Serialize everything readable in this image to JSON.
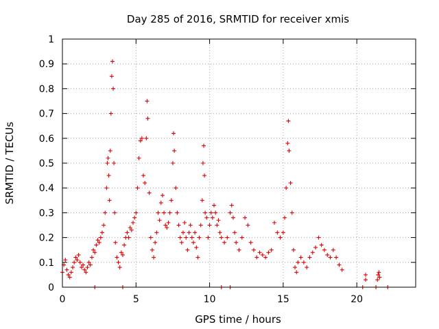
{
  "chart_data": {
    "type": "scatter",
    "title": "Day 285 of 2016, SRMTID for receiver xmis",
    "xlabel": "GPS time / hours",
    "ylabel": "SRMTID / TECUs",
    "xlim": [
      0,
      24
    ],
    "ylim": [
      0,
      1
    ],
    "x_ticks": [
      0,
      5,
      10,
      15,
      20
    ],
    "x_tick_labels": [
      "0",
      "5",
      "10",
      "15",
      "20"
    ],
    "y_ticks": [
      0,
      0.1,
      0.2,
      0.3,
      0.4,
      0.5,
      0.6,
      0.7,
      0.8,
      0.9,
      1
    ],
    "y_tick_labels": [
      "0",
      "0.1",
      "0.2",
      "0.3",
      "0.4",
      "0.5",
      "0.6",
      "0.7",
      "0.8",
      "0.9",
      "1"
    ],
    "grid": true,
    "marker": "plus",
    "series": [
      {
        "name": "SRMTID",
        "color": "#e00000",
        "points": [
          [
            0.0,
            0.06
          ],
          [
            0.1,
            0.09
          ],
          [
            0.2,
            0.11
          ],
          [
            0.3,
            0.07
          ],
          [
            0.4,
            0.05
          ],
          [
            0.5,
            0.04
          ],
          [
            0.6,
            0.06
          ],
          [
            0.7,
            0.08
          ],
          [
            0.8,
            0.1
          ],
          [
            0.9,
            0.12
          ],
          [
            1.0,
            0.11
          ],
          [
            1.1,
            0.13
          ],
          [
            1.2,
            0.1
          ],
          [
            1.3,
            0.08
          ],
          [
            1.4,
            0.09
          ],
          [
            1.5,
            0.07
          ],
          [
            1.6,
            0.06
          ],
          [
            1.7,
            0.08
          ],
          [
            1.8,
            0.1
          ],
          [
            1.9,
            0.09
          ],
          [
            2.0,
            0.12
          ],
          [
            2.1,
            0.15
          ],
          [
            2.2,
            0.14
          ],
          [
            2.3,
            0.17
          ],
          [
            2.4,
            0.19
          ],
          [
            2.5,
            0.18
          ],
          [
            2.6,
            0.2
          ],
          [
            2.7,
            0.22
          ],
          [
            2.8,
            0.25
          ],
          [
            2.9,
            0.3
          ],
          [
            3.0,
            0.4
          ],
          [
            3.05,
            0.5
          ],
          [
            3.1,
            0.52
          ],
          [
            3.15,
            0.45
          ],
          [
            3.2,
            0.35
          ],
          [
            3.25,
            0.55
          ],
          [
            3.3,
            0.7
          ],
          [
            3.35,
            0.85
          ],
          [
            3.4,
            0.91
          ],
          [
            3.45,
            0.8
          ],
          [
            3.5,
            0.5
          ],
          [
            3.55,
            0.3
          ],
          [
            3.6,
            0.18
          ],
          [
            3.7,
            0.12
          ],
          [
            3.8,
            0.1
          ],
          [
            3.9,
            0.08
          ],
          [
            4.0,
            0.14
          ],
          [
            4.1,
            0.13
          ],
          [
            4.2,
            0.17
          ],
          [
            4.3,
            0.2
          ],
          [
            4.4,
            0.22
          ],
          [
            4.5,
            0.2
          ],
          [
            4.6,
            0.24
          ],
          [
            4.7,
            0.23
          ],
          [
            4.8,
            0.26
          ],
          [
            4.9,
            0.28
          ],
          [
            5.0,
            0.3
          ],
          [
            5.1,
            0.4
          ],
          [
            5.2,
            0.52
          ],
          [
            5.3,
            0.59
          ],
          [
            5.4,
            0.6
          ],
          [
            5.5,
            0.45
          ],
          [
            5.6,
            0.42
          ],
          [
            5.7,
            0.6
          ],
          [
            5.75,
            0.75
          ],
          [
            5.8,
            0.68
          ],
          [
            5.9,
            0.38
          ],
          [
            6.0,
            0.2
          ],
          [
            6.1,
            0.15
          ],
          [
            6.2,
            0.12
          ],
          [
            6.3,
            0.18
          ],
          [
            6.4,
            0.22
          ],
          [
            6.5,
            0.3
          ],
          [
            6.6,
            0.27
          ],
          [
            6.7,
            0.34
          ],
          [
            6.8,
            0.37
          ],
          [
            6.9,
            0.3
          ],
          [
            7.0,
            0.25
          ],
          [
            7.1,
            0.24
          ],
          [
            7.2,
            0.26
          ],
          [
            7.3,
            0.3
          ],
          [
            7.4,
            0.35
          ],
          [
            7.5,
            0.5
          ],
          [
            7.55,
            0.62
          ],
          [
            7.6,
            0.55
          ],
          [
            7.7,
            0.4
          ],
          [
            7.8,
            0.3
          ],
          [
            7.9,
            0.25
          ],
          [
            8.0,
            0.2
          ],
          [
            8.1,
            0.18
          ],
          [
            8.2,
            0.22
          ],
          [
            8.3,
            0.26
          ],
          [
            8.4,
            0.2
          ],
          [
            8.5,
            0.15
          ],
          [
            8.6,
            0.22
          ],
          [
            8.7,
            0.25
          ],
          [
            8.8,
            0.2
          ],
          [
            8.9,
            0.18
          ],
          [
            9.0,
            0.22
          ],
          [
            9.1,
            0.16
          ],
          [
            9.2,
            0.12
          ],
          [
            9.3,
            0.2
          ],
          [
            9.4,
            0.25
          ],
          [
            9.5,
            0.35
          ],
          [
            9.55,
            0.5
          ],
          [
            9.6,
            0.57
          ],
          [
            9.65,
            0.45
          ],
          [
            9.7,
            0.3
          ],
          [
            9.8,
            0.28
          ],
          [
            9.9,
            0.2
          ],
          [
            10.0,
            0.25
          ],
          [
            10.1,
            0.3
          ],
          [
            10.2,
            0.28
          ],
          [
            10.3,
            0.33
          ],
          [
            10.4,
            0.3
          ],
          [
            10.5,
            0.25
          ],
          [
            10.6,
            0.27
          ],
          [
            10.7,
            0.22
          ],
          [
            10.8,
            0.2
          ],
          [
            11.0,
            0.18
          ],
          [
            11.2,
            0.2
          ],
          [
            11.4,
            0.3
          ],
          [
            11.5,
            0.33
          ],
          [
            11.6,
            0.28
          ],
          [
            11.7,
            0.22
          ],
          [
            11.8,
            0.18
          ],
          [
            12.0,
            0.15
          ],
          [
            12.2,
            0.2
          ],
          [
            12.4,
            0.28
          ],
          [
            12.6,
            0.25
          ],
          [
            12.8,
            0.18
          ],
          [
            13.0,
            0.15
          ],
          [
            13.2,
            0.12
          ],
          [
            13.4,
            0.14
          ],
          [
            13.6,
            0.13
          ],
          [
            13.8,
            0.12
          ],
          [
            14.0,
            0.14
          ],
          [
            14.2,
            0.15
          ],
          [
            14.4,
            0.26
          ],
          [
            14.6,
            0.22
          ],
          [
            14.8,
            0.2
          ],
          [
            15.0,
            0.22
          ],
          [
            15.1,
            0.28
          ],
          [
            15.2,
            0.4
          ],
          [
            15.3,
            0.58
          ],
          [
            15.35,
            0.67
          ],
          [
            15.4,
            0.55
          ],
          [
            15.5,
            0.42
          ],
          [
            15.6,
            0.3
          ],
          [
            15.7,
            0.15
          ],
          [
            15.8,
            0.08
          ],
          [
            15.9,
            0.06
          ],
          [
            16.0,
            0.1
          ],
          [
            16.2,
            0.12
          ],
          [
            16.4,
            0.1
          ],
          [
            16.6,
            0.08
          ],
          [
            16.8,
            0.12
          ],
          [
            17.0,
            0.14
          ],
          [
            17.2,
            0.16
          ],
          [
            17.4,
            0.2
          ],
          [
            17.6,
            0.17
          ],
          [
            17.8,
            0.15
          ],
          [
            18.0,
            0.13
          ],
          [
            18.2,
            0.12
          ],
          [
            18.4,
            0.15
          ],
          [
            18.6,
            0.12
          ],
          [
            18.8,
            0.09
          ],
          [
            19.0,
            0.07
          ],
          [
            20.6,
            0.03
          ],
          [
            20.6,
            0.05
          ],
          [
            21.4,
            0.03
          ],
          [
            21.45,
            0.05
          ],
          [
            21.5,
            0.06
          ],
          [
            21.55,
            0.04
          ],
          [
            2.2,
            0.0
          ],
          [
            4.1,
            0.0
          ],
          [
            10.8,
            0.0
          ],
          [
            11.4,
            0.0
          ],
          [
            20.4,
            0.0
          ],
          [
            21.3,
            0.0
          ],
          [
            22.1,
            0.0
          ]
        ]
      }
    ]
  }
}
